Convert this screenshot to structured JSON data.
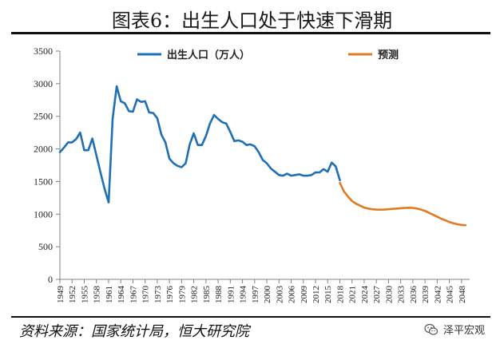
{
  "title": "图表6：出生人口处于快速下滑期",
  "source": "资料来源：国家统计局，恒大研究院",
  "watermark": {
    "text": "泽平宏观",
    "icon": "wechat-icon"
  },
  "colors": {
    "actual": "#1f6fb5",
    "forecast": "#e07b24",
    "axis": "#808080",
    "text": "#222222"
  },
  "chart_data": {
    "type": "line",
    "title": "",
    "xlabel": "",
    "ylabel": "",
    "ylim": [
      0,
      3500
    ],
    "yticks": [
      0,
      500,
      1000,
      1500,
      2000,
      2500,
      3000,
      3500
    ],
    "xlim": [
      1949,
      2050
    ],
    "xticks": [
      "1949",
      "1952",
      "1955",
      "1958",
      "1961",
      "1964",
      "1967",
      "1970",
      "1973",
      "1976",
      "1979",
      "1982",
      "1985",
      "1988",
      "1991",
      "1994",
      "1997",
      "2000",
      "2003",
      "2006",
      "2009",
      "2012",
      "2015",
      "2018",
      "2021",
      "2024",
      "2027",
      "2030",
      "2033",
      "2036",
      "2039",
      "2042",
      "2045",
      "2048"
    ],
    "grid": false,
    "legend_placement": "top",
    "series": [
      {
        "name": "出生人口（万人）",
        "color": "#1f6fb5",
        "x": [
          1949,
          1950,
          1951,
          1952,
          1953,
          1954,
          1955,
          1956,
          1957,
          1958,
          1959,
          1960,
          1961,
          1962,
          1963,
          1964,
          1965,
          1966,
          1967,
          1968,
          1969,
          1970,
          1971,
          1972,
          1973,
          1974,
          1975,
          1976,
          1977,
          1978,
          1979,
          1980,
          1981,
          1982,
          1983,
          1984,
          1985,
          1986,
          1987,
          1988,
          1989,
          1990,
          1991,
          1992,
          1993,
          1994,
          1995,
          1996,
          1997,
          1998,
          1999,
          2000,
          2001,
          2002,
          2003,
          2004,
          2005,
          2006,
          2007,
          2008,
          2009,
          2010,
          2011,
          2012,
          2013,
          2014,
          2015,
          2016,
          2017,
          2018
        ],
        "values": [
          1950,
          2020,
          2100,
          2100,
          2150,
          2250,
          1980,
          1980,
          2160,
          1900,
          1640,
          1390,
          1180,
          2460,
          2960,
          2730,
          2700,
          2580,
          2570,
          2760,
          2720,
          2730,
          2560,
          2550,
          2470,
          2220,
          2100,
          1850,
          1780,
          1740,
          1720,
          1780,
          2070,
          2240,
          2060,
          2060,
          2200,
          2390,
          2520,
          2460,
          2410,
          2390,
          2260,
          2120,
          2130,
          2110,
          2060,
          2070,
          2040,
          1950,
          1830,
          1780,
          1700,
          1650,
          1600,
          1590,
          1620,
          1590,
          1600,
          1610,
          1590,
          1590,
          1600,
          1640,
          1640,
          1690,
          1650,
          1790,
          1730,
          1520
        ]
      },
      {
        "name": "预测",
        "color": "#e07b24",
        "x": [
          2018,
          2019,
          2020,
          2021,
          2022,
          2023,
          2024,
          2025,
          2026,
          2027,
          2028,
          2029,
          2030,
          2031,
          2032,
          2033,
          2034,
          2035,
          2036,
          2037,
          2038,
          2039,
          2040,
          2041,
          2042,
          2043,
          2044,
          2045,
          2046,
          2047,
          2048,
          2049
        ],
        "values": [
          1480,
          1350,
          1270,
          1200,
          1160,
          1130,
          1100,
          1085,
          1075,
          1070,
          1068,
          1070,
          1075,
          1080,
          1085,
          1090,
          1095,
          1098,
          1095,
          1085,
          1070,
          1050,
          1020,
          990,
          960,
          930,
          905,
          880,
          860,
          845,
          835,
          830
        ]
      }
    ]
  }
}
